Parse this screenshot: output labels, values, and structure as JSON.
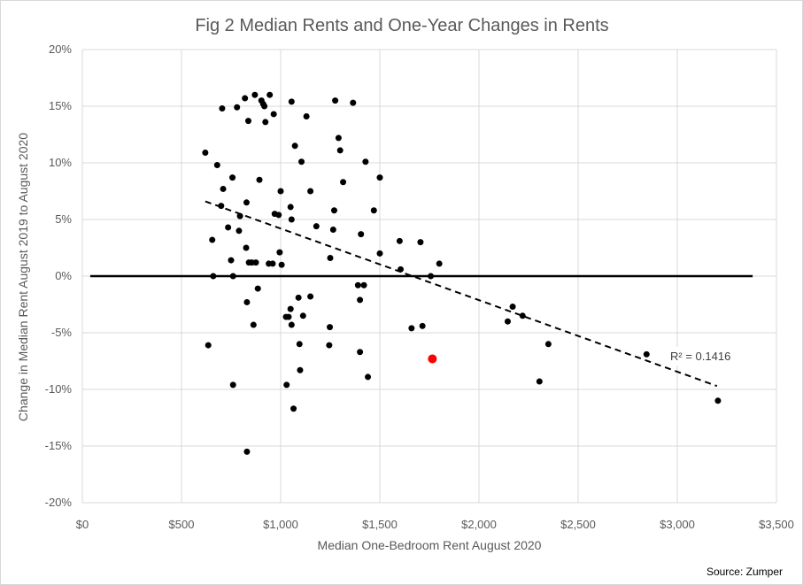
{
  "colors": {
    "point": "#000000",
    "highlight_point": "#ff0000",
    "gridline": "#d9d9d9",
    "zero_line": "#000000",
    "trendline": "#000000",
    "text": "#595959"
  },
  "chart_data": {
    "type": "scatter",
    "title": "Fig 2 Median Rents and One-Year Changes in Rents",
    "xlabel": "Median One-Bedroom  Rent August 2020",
    "ylabel": "Change in Median Rent August 2019 to August 2020",
    "xlim": [
      0,
      3500
    ],
    "ylim": [
      -20,
      20
    ],
    "x_ticks": [
      0,
      500,
      1000,
      1500,
      2000,
      2500,
      3000,
      3500
    ],
    "x_tick_labels": [
      "$0",
      "$500",
      "$1,000",
      "$1,500",
      "$2,000",
      "$2,500",
      "$3,000",
      "$3,500"
    ],
    "y_ticks": [
      -20,
      -15,
      -10,
      -5,
      0,
      5,
      10,
      15,
      20
    ],
    "y_tick_labels": [
      "-20%",
      "-15%",
      "-10%",
      "-5%",
      "0%",
      "5%",
      "10%",
      "15%",
      "20%"
    ],
    "grid": true,
    "legend": "none",
    "zero_line": {
      "x": [
        40,
        3380
      ],
      "y": 0
    },
    "trendline": {
      "style": "dashed",
      "x": [
        620,
        3200
      ],
      "y": [
        6.6,
        -9.7
      ],
      "label": "R² = 0.1416"
    },
    "source": "Source: Zumper",
    "series": [
      {
        "points": [
          [
            620,
            10.9
          ],
          [
            635,
            -6.1
          ],
          [
            655,
            3.2
          ],
          [
            660,
            0
          ],
          [
            680,
            9.8
          ],
          [
            700,
            6.2
          ],
          [
            705,
            14.8
          ],
          [
            710,
            7.7
          ],
          [
            735,
            4.3
          ],
          [
            750,
            1.4
          ],
          [
            757,
            8.7
          ],
          [
            760,
            0
          ],
          [
            760,
            -9.6
          ],
          [
            780,
            14.9
          ],
          [
            790,
            4.0
          ],
          [
            795,
            5.3
          ],
          [
            820,
            15.7
          ],
          [
            826,
            2.5
          ],
          [
            828,
            6.5
          ],
          [
            830,
            -2.3
          ],
          [
            830,
            -15.5
          ],
          [
            837,
            13.7
          ],
          [
            840,
            1.2
          ],
          [
            855,
            1.2
          ],
          [
            863,
            -4.3
          ],
          [
            870,
            16.0
          ],
          [
            875,
            1.2
          ],
          [
            885,
            -1.1
          ],
          [
            893,
            8.5
          ],
          [
            903,
            15.5
          ],
          [
            912,
            15.2
          ],
          [
            918,
            15.0
          ],
          [
            923,
            13.6
          ],
          [
            940,
            1.1
          ],
          [
            945,
            16.0
          ],
          [
            960,
            1.1
          ],
          [
            965,
            14.3
          ],
          [
            970,
            5.5
          ],
          [
            990,
            5.4
          ],
          [
            995,
            2.1
          ],
          [
            1000,
            7.5
          ],
          [
            1005,
            1.0
          ],
          [
            1027,
            -3.6
          ],
          [
            1030,
            -9.6
          ],
          [
            1040,
            -3.6
          ],
          [
            1050,
            -2.9
          ],
          [
            1050,
            6.1
          ],
          [
            1055,
            5.0
          ],
          [
            1055,
            15.4
          ],
          [
            1055,
            -4.3
          ],
          [
            1065,
            -11.7
          ],
          [
            1072,
            11.5
          ],
          [
            1090,
            -1.9
          ],
          [
            1095,
            -6.0
          ],
          [
            1098,
            -8.3
          ],
          [
            1105,
            10.1
          ],
          [
            1113,
            -3.5
          ],
          [
            1130,
            14.1
          ],
          [
            1150,
            7.5
          ],
          [
            1150,
            -1.8
          ],
          [
            1180,
            4.4
          ],
          [
            1245,
            -6.1
          ],
          [
            1248,
            -4.5
          ],
          [
            1250,
            1.6
          ],
          [
            1265,
            4.1
          ],
          [
            1270,
            5.8
          ],
          [
            1275,
            15.5
          ],
          [
            1292,
            12.2
          ],
          [
            1300,
            11.1
          ],
          [
            1315,
            8.3
          ],
          [
            1365,
            15.3
          ],
          [
            1390,
            -0.8
          ],
          [
            1400,
            -2.1
          ],
          [
            1400,
            -6.7
          ],
          [
            1405,
            3.7
          ],
          [
            1420,
            -0.8
          ],
          [
            1428,
            10.1
          ],
          [
            1440,
            -8.9
          ],
          [
            1470,
            5.8
          ],
          [
            1500,
            2.0
          ],
          [
            1500,
            8.7
          ],
          [
            1600,
            3.1
          ],
          [
            1605,
            0.6
          ],
          [
            1660,
            -4.6
          ],
          [
            1705,
            3.0
          ],
          [
            1715,
            -4.4
          ],
          [
            1757,
            0
          ],
          [
            1800,
            1.1
          ],
          [
            2145,
            -4.0
          ],
          [
            2170,
            -2.7
          ],
          [
            2220,
            -3.5
          ],
          [
            2305,
            -9.3
          ],
          [
            2350,
            -6.0
          ],
          [
            2845,
            -6.9
          ],
          [
            3205,
            -11.0
          ]
        ]
      },
      {
        "points": [
          [
            1765,
            -7.3
          ]
        ]
      }
    ]
  }
}
